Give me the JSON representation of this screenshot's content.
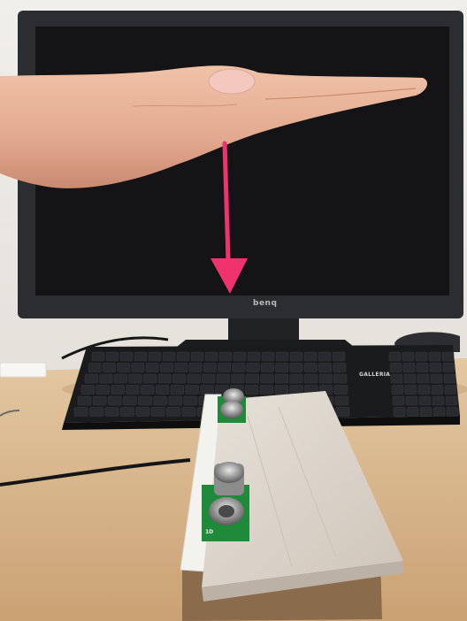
{
  "photo": {
    "monitor_brand": "benq",
    "keyboard_brand": "GALLERIA",
    "sensor_label": "1D"
  },
  "colors": {
    "arrow": "#f0336e",
    "wall": "#e9e6e1",
    "desk": "#d9b58a",
    "monitor_frame": "#2b2d30",
    "screen": "#141416",
    "wood_board": "#d8d0c8",
    "pcb": "#1f8a3a",
    "skin": "#e8b49a"
  }
}
